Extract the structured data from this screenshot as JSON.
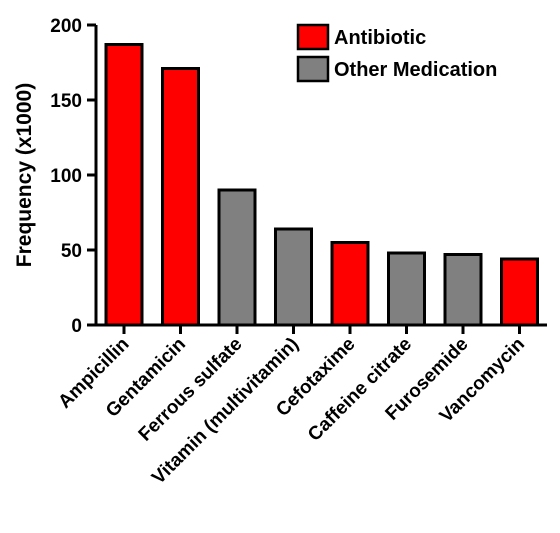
{
  "chart_data": {
    "type": "bar",
    "ylabel": "Frequency (x1000)",
    "ylim": [
      0,
      200
    ],
    "yticks": [
      "0",
      "50",
      "100",
      "150",
      "200"
    ],
    "categories": [
      "Ampicillin",
      "Gentamicin",
      "Ferrous sulfate",
      "Vitamin (multivitamin)",
      "Cefotaxime",
      "Caffeine citrate",
      "Furosemide",
      "Vancomycin"
    ],
    "values": [
      187,
      171,
      90,
      64,
      55,
      48,
      47,
      44
    ],
    "groups": [
      "Antibiotic",
      "Antibiotic",
      "Other Medication",
      "Other Medication",
      "Antibiotic",
      "Other Medication",
      "Other Medication",
      "Antibiotic"
    ],
    "legend": {
      "placement": "top-right",
      "entries": [
        {
          "label": "Antibiotic",
          "color": "#ff0000"
        },
        {
          "label": "Other Medication",
          "color": "#808080"
        }
      ]
    }
  }
}
